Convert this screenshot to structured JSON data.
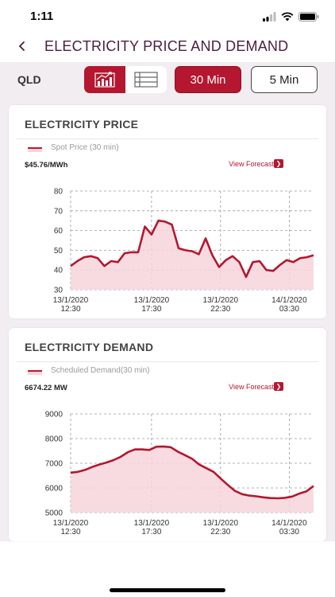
{
  "status": {
    "time": "1:11"
  },
  "nav": {
    "title": "ELECTRICITY PRICE AND DEMAND"
  },
  "toolbar": {
    "region": "QLD",
    "interval_30": "30 Min",
    "interval_5": "5 Min"
  },
  "colors": {
    "accent": "#b4172f",
    "fill": "#f6d5da",
    "background": "#f1edf0"
  },
  "price_card": {
    "title": "ELECTRICITY PRICE",
    "legend": "Spot Price (30 min)",
    "current_value": "$45.76/MWh",
    "forecast_label": "View Forecast"
  },
  "demand_card": {
    "title": "ELECTRICITY DEMAND",
    "legend": "Scheduled Demand(30 min)",
    "current_value": "6674.22 MW",
    "forecast_label": "View Forecast"
  },
  "chart_data": [
    {
      "type": "area",
      "series": [
        {
          "name": "Spot Price (30 min)",
          "values": [
            42,
            44.5,
            46.5,
            47,
            46,
            42,
            44.5,
            44,
            48.5,
            49,
            49,
            62,
            58,
            65,
            64.5,
            63,
            51,
            50,
            49.5,
            48,
            56,
            47.5,
            41.5,
            45,
            47,
            44,
            36.5,
            44,
            44.5,
            40,
            39.5,
            42.5,
            45,
            44,
            46,
            46.5,
            47.5
          ]
        }
      ],
      "x_ticks": [
        "13/1/2020\n12:30",
        "13/1/2020\n17:30",
        "13/1/2020\n22:30",
        "14/1/2020\n03:30"
      ],
      "y_ticks": [
        "30",
        "40",
        "50",
        "60",
        "70",
        "80"
      ],
      "ylim": [
        30,
        80
      ],
      "grid": true
    },
    {
      "type": "area",
      "series": [
        {
          "name": "Scheduled Demand(30 min)",
          "values": [
            6620,
            6650,
            6730,
            6850,
            6950,
            7030,
            7130,
            7260,
            7450,
            7560,
            7560,
            7540,
            7670,
            7680,
            7650,
            7470,
            7330,
            7180,
            6950,
            6800,
            6650,
            6380,
            6120,
            5880,
            5750,
            5690,
            5660,
            5620,
            5590,
            5580,
            5600,
            5650,
            5770,
            5860,
            6080
          ]
        }
      ],
      "x_ticks": [
        "13/1/2020\n12:30",
        "13/1/2020\n17:30",
        "13/1/2020\n22:30",
        "14/1/2020\n03:30"
      ],
      "y_ticks": [
        "5000",
        "6000",
        "7000",
        "8000",
        "9000"
      ],
      "ylim": [
        5000,
        9000
      ],
      "grid": true
    }
  ]
}
